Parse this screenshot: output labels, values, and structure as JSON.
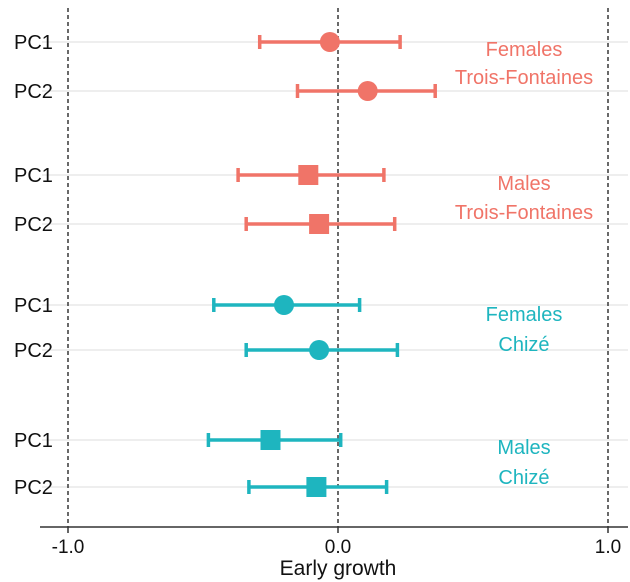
{
  "chart_data": {
    "type": "scatter",
    "subtype": "forest-plot",
    "xlabel": "Early growth",
    "xlim": [
      -1.1,
      1.1
    ],
    "xticks": [
      "-1.0",
      "0.0",
      "1.0"
    ],
    "vlines": [
      -1.0,
      0.0,
      1.0
    ],
    "grid": "horizontal rows",
    "colors": {
      "Trois-Fontaines": "#f07468",
      "Chizé": "#1eb5bf"
    },
    "groups": [
      {
        "label_lines": [
          "Females",
          "Trois-Fontaines"
        ],
        "color": "#f07468",
        "marker": "circle",
        "rows": [
          {
            "label": "PC1",
            "estimate": -0.03,
            "lower": -0.29,
            "upper": 0.23
          },
          {
            "label": "PC2",
            "estimate": 0.11,
            "lower": -0.15,
            "upper": 0.36
          }
        ]
      },
      {
        "label_lines": [
          "Males",
          "Trois-Fontaines"
        ],
        "color": "#f07468",
        "marker": "square",
        "rows": [
          {
            "label": "PC1",
            "estimate": -0.11,
            "lower": -0.37,
            "upper": 0.17
          },
          {
            "label": "PC2",
            "estimate": -0.07,
            "lower": -0.34,
            "upper": 0.21
          }
        ]
      },
      {
        "label_lines": [
          "Females",
          "Chizé"
        ],
        "color": "#1eb5bf",
        "marker": "circle",
        "rows": [
          {
            "label": "PC1",
            "estimate": -0.2,
            "lower": -0.46,
            "upper": 0.08
          },
          {
            "label": "PC2",
            "estimate": -0.07,
            "lower": -0.34,
            "upper": 0.22
          }
        ]
      },
      {
        "label_lines": [
          "Males",
          "Chizé"
        ],
        "color": "#1eb5bf",
        "marker": "square",
        "rows": [
          {
            "label": "PC1",
            "estimate": -0.25,
            "lower": -0.48,
            "upper": 0.01
          },
          {
            "label": "PC2",
            "estimate": -0.08,
            "lower": -0.33,
            "upper": 0.18
          }
        ]
      }
    ]
  }
}
